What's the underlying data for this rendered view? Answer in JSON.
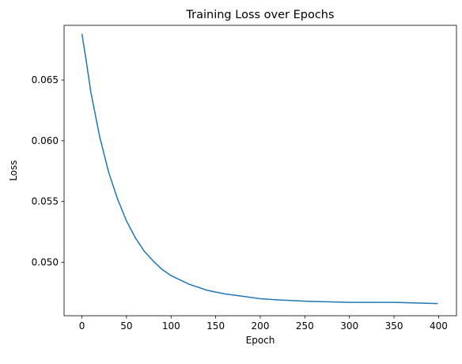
{
  "chart_data": {
    "type": "line",
    "title": "Training Loss over Epochs",
    "xlabel": "Epoch",
    "ylabel": "Loss",
    "xlim": [
      -20,
      420
    ],
    "ylim": [
      0.0456,
      0.0695
    ],
    "xticks": [
      0,
      50,
      100,
      150,
      200,
      250,
      300,
      350,
      400
    ],
    "xtick_labels": [
      "0",
      "50",
      "100",
      "150",
      "200",
      "250",
      "300",
      "350",
      "400"
    ],
    "yticks": [
      0.05,
      0.055,
      0.06,
      0.065
    ],
    "ytick_labels": [
      "0.050",
      "0.055",
      "0.060",
      "0.065"
    ],
    "grid": false,
    "legend": false,
    "series": [
      {
        "color": "#1f77b4",
        "x": [
          0,
          5,
          10,
          20,
          30,
          40,
          50,
          60,
          70,
          80,
          90,
          100,
          120,
          140,
          160,
          180,
          200,
          220,
          250,
          300,
          350,
          399
        ],
        "y": [
          0.0688,
          0.0665,
          0.064,
          0.0603,
          0.0574,
          0.0552,
          0.0534,
          0.052,
          0.0509,
          0.0501,
          0.0494,
          0.0489,
          0.0482,
          0.0477,
          0.0474,
          0.0472,
          0.047,
          0.0469,
          0.0468,
          0.0467,
          0.0467,
          0.0466
        ]
      }
    ]
  }
}
